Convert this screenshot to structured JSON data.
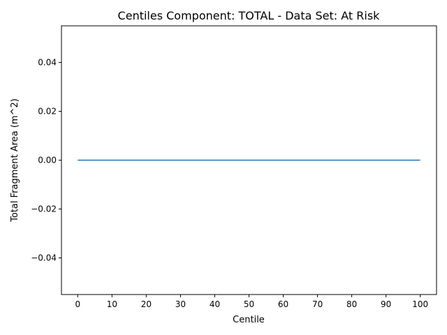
{
  "chart_data": {
    "type": "line",
    "title": "Centiles Component: TOTAL - Data Set: At Risk",
    "xlabel": "Centile",
    "ylabel": "Total Fragment Area (m^2)",
    "xlim": [
      -4.75,
      104.75
    ],
    "ylim": [
      -0.055,
      0.055
    ],
    "xticks": [
      0,
      10,
      20,
      30,
      40,
      50,
      60,
      70,
      80,
      90,
      100
    ],
    "xtick_labels": [
      "0",
      "10",
      "20",
      "30",
      "40",
      "50",
      "60",
      "70",
      "80",
      "90",
      "100"
    ],
    "yticks": [
      -0.04,
      -0.02,
      0.0,
      0.02,
      0.04
    ],
    "ytick_labels": [
      "−0.04",
      "−0.02",
      "0.00",
      "0.02",
      "0.04"
    ],
    "grid": false,
    "series": [
      {
        "color": "#1f77b4",
        "x": [
          0,
          10,
          20,
          30,
          40,
          50,
          60,
          70,
          80,
          90,
          100
        ],
        "y": [
          0,
          0,
          0,
          0,
          0,
          0,
          0,
          0,
          0,
          0,
          0
        ]
      }
    ]
  }
}
